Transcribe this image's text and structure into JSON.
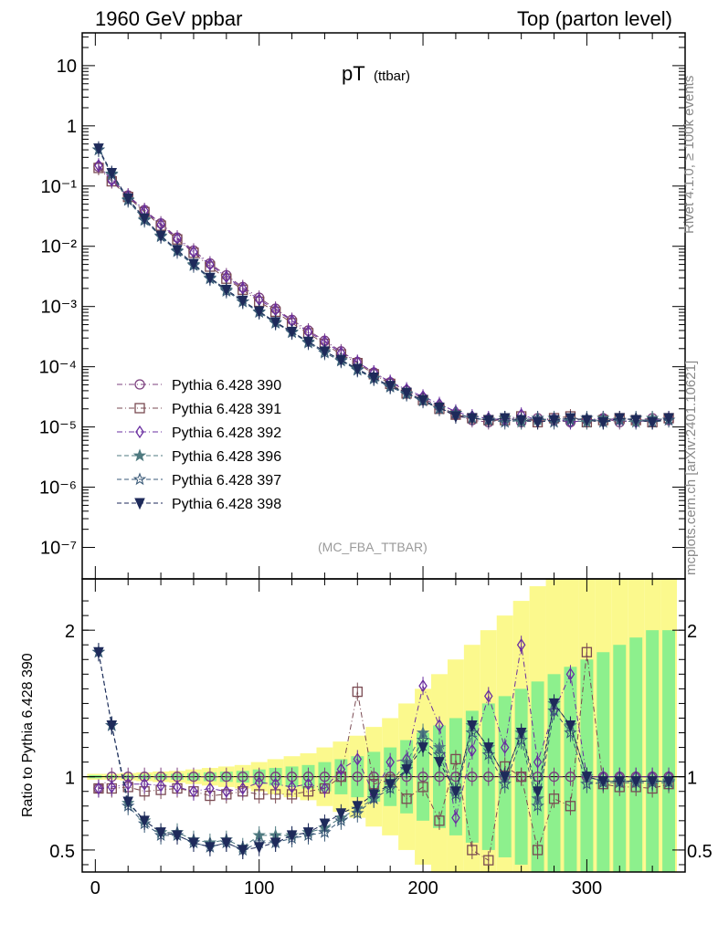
{
  "header": {
    "left": "1960 GeV ppbar",
    "right": "Top (parton level)"
  },
  "side_labels": {
    "top": "Rivet 4.1.0, ≥ 100k events",
    "bottom": "mcplots.cern.ch [arXiv:2401.10621]"
  },
  "plot_title": {
    "main": "pT",
    "sub": "(ttbar)"
  },
  "analysis_label": "(MC_FBA_TTBAR)",
  "ratio_ylabel": "Ratio to Pythia 6.428 390",
  "chart_data": {
    "type": "scatter",
    "title": "pT (ttbar)",
    "xlabel": "",
    "main_ylabel": "",
    "xlim": [
      -8,
      360
    ],
    "main_yscale": "log",
    "main_ylim": [
      3e-08,
      35
    ],
    "main_yticks": [
      {
        "value": 10,
        "label": "10"
      },
      {
        "value": 1,
        "label": "1"
      },
      {
        "value": 0.1,
        "label": "10⁻¹"
      },
      {
        "value": 0.01,
        "label": "10⁻²"
      },
      {
        "value": 0.001,
        "label": "10⁻³"
      },
      {
        "value": 0.0001,
        "label": "10⁻⁴"
      },
      {
        "value": 1e-05,
        "label": "10⁻⁵"
      },
      {
        "value": 1e-06,
        "label": "10⁻⁶"
      },
      {
        "value": 1e-07,
        "label": "10⁻⁷"
      }
    ],
    "ratio_ylim": [
      0.35,
      2.35
    ],
    "ratio_yticks": [
      {
        "value": 2,
        "label": "2"
      },
      {
        "value": 1,
        "label": "1"
      },
      {
        "value": 0.5,
        "label": "0.5"
      }
    ],
    "xticks": [
      0,
      100,
      200,
      300
    ],
    "legend_position": "lower-left",
    "series": [
      {
        "name": "Pythia 6.428 390",
        "color": "#7b3f7e",
        "marker": "circle-open",
        "dash": "dashdot",
        "x": [
          2,
          10,
          20,
          30,
          40,
          50,
          60,
          70,
          80,
          90,
          100,
          110,
          120,
          130,
          140,
          150,
          160,
          170,
          180,
          190,
          200,
          210,
          220,
          230,
          240,
          250,
          260,
          270,
          280,
          290,
          300,
          310,
          320,
          330,
          340,
          350
        ],
        "y": [
          0.21,
          0.13,
          0.07,
          0.04,
          0.024,
          0.014,
          0.0085,
          0.0052,
          0.0033,
          0.0021,
          0.0014,
          0.00092,
          0.0006,
          0.0004,
          0.00027,
          0.00018,
          0.00012,
          8e-05,
          5.5e-05,
          4e-05,
          3e-05,
          2.2e-05,
          1.6e-05,
          1.3e-05,
          1.2e-05,
          1.4e-05,
          1.2e-05,
          1.4e-05,
          1.3e-05,
          1.2e-05,
          1.3e-05,
          1.4e-05,
          1.2e-05,
          1.3e-05,
          1.4e-05,
          1.3e-05
        ],
        "ratio": [
          0.92,
          1,
          1,
          1,
          1,
          1,
          1,
          1,
          1,
          1,
          1,
          1,
          1,
          1,
          1,
          1,
          1,
          1,
          1,
          1,
          1,
          1,
          1,
          1,
          1,
          1,
          1,
          1,
          1,
          1,
          1,
          1,
          1,
          1,
          1,
          1
        ]
      },
      {
        "name": "Pythia 6.428 391",
        "color": "#7a4a52",
        "marker": "square-open",
        "dash": "dashdot",
        "x": [
          2,
          10,
          20,
          30,
          40,
          50,
          60,
          70,
          80,
          90,
          100,
          110,
          120,
          130,
          140,
          150,
          160,
          170,
          180,
          190,
          200,
          210,
          220,
          230,
          240,
          250,
          260,
          270,
          280,
          290,
          300,
          310,
          320,
          330,
          340,
          350
        ],
        "y": [
          0.2,
          0.12,
          0.066,
          0.037,
          0.022,
          0.013,
          0.0078,
          0.0046,
          0.0029,
          0.0019,
          0.0012,
          0.00082,
          0.00053,
          0.00036,
          0.00024,
          0.00016,
          0.000115,
          7.5e-05,
          5.2e-05,
          3.6e-05,
          2.8e-05,
          2e-05,
          1.6e-05,
          1.4e-05,
          1.3e-05,
          1.3e-05,
          1.5e-05,
          1.2e-05,
          1.4e-05,
          1.5e-05,
          1.2e-05,
          1.3e-05,
          1.4e-05,
          1.3e-05,
          1.2e-05,
          1.4e-05
        ],
        "ratio": [
          0.92,
          0.92,
          0.93,
          0.9,
          0.91,
          0.92,
          0.9,
          0.87,
          0.88,
          0.9,
          0.88,
          0.88,
          0.88,
          0.9,
          0.92,
          1.0,
          1.58,
          0.95,
          0.98,
          0.85,
          0.93,
          0.7,
          1.12,
          0.5,
          0.43,
          1.07,
          1.0,
          0.5,
          0.85,
          0.8,
          1.85,
          0.95,
          0.93,
          0.93,
          0.92,
          0.95
        ]
      },
      {
        "name": "Pythia 6.428 392",
        "color": "#6a2fa0",
        "marker": "diamond-open",
        "dash": "dashdot",
        "x": [
          2,
          10,
          20,
          30,
          40,
          50,
          60,
          70,
          80,
          90,
          100,
          110,
          120,
          130,
          140,
          150,
          160,
          170,
          180,
          190,
          200,
          210,
          220,
          230,
          240,
          250,
          260,
          270,
          280,
          290,
          300,
          310,
          320,
          330,
          340,
          350
        ],
        "y": [
          0.22,
          0.125,
          0.068,
          0.039,
          0.023,
          0.0135,
          0.008,
          0.005,
          0.0031,
          0.002,
          0.0013,
          0.00088,
          0.00058,
          0.00038,
          0.00026,
          0.00017,
          0.00012,
          8e-05,
          5.6e-05,
          4.2e-05,
          3.2e-05,
          2.4e-05,
          1.8e-05,
          1.5e-05,
          1.4e-05,
          1.3e-05,
          1.6e-05,
          1.3e-05,
          1.4e-05,
          1.2e-05,
          1.3e-05,
          1.4e-05,
          1.3e-05,
          1.2e-05,
          1.3e-05,
          1.4e-05
        ],
        "ratio": [
          0.92,
          0.93,
          0.95,
          0.95,
          0.94,
          0.93,
          0.9,
          0.92,
          0.9,
          0.92,
          0.96,
          0.95,
          0.93,
          0.95,
          0.92,
          1.05,
          1.12,
          0.88,
          1.1,
          1.12,
          1.62,
          1.35,
          0.72,
          1.18,
          1.55,
          1.2,
          1.9,
          1.1,
          1.45,
          1.7,
          1.0,
          1.0,
          1.0,
          1.0,
          1.0,
          1.0
        ]
      },
      {
        "name": "Pythia 6.428 396",
        "color": "#4f7a80",
        "marker": "star-filled",
        "dash": "dash",
        "x": [
          2,
          10,
          20,
          30,
          40,
          50,
          60,
          70,
          80,
          90,
          100,
          110,
          120,
          130,
          140,
          150,
          160,
          170,
          180,
          190,
          200,
          210,
          220,
          230,
          240,
          250,
          260,
          270,
          280,
          290,
          300,
          310,
          320,
          330,
          340,
          350
        ],
        "y": [
          0.4,
          0.16,
          0.06,
          0.028,
          0.015,
          0.0085,
          0.005,
          0.003,
          0.0019,
          0.0012,
          0.00082,
          0.00055,
          0.00038,
          0.00026,
          0.00018,
          0.00013,
          9e-05,
          6.5e-05,
          4.8e-05,
          3.6e-05,
          2.8e-05,
          2e-05,
          1.7e-05,
          1.4e-05,
          1.3e-05,
          1.4e-05,
          1.2e-05,
          1.3e-05,
          1.4e-05,
          1.3e-05,
          1.2e-05,
          1.4e-05,
          1.3e-05,
          1.2e-05,
          1.4e-05,
          1.3e-05
        ],
        "ratio": [
          1.85,
          1.35,
          0.82,
          0.7,
          0.62,
          0.62,
          0.57,
          0.55,
          0.57,
          0.52,
          0.6,
          0.6,
          0.6,
          0.62,
          0.65,
          0.72,
          0.78,
          0.85,
          0.95,
          1.1,
          1.3,
          1.2,
          0.9,
          1.35,
          1.2,
          1.0,
          1.3,
          0.85,
          1.5,
          1.35,
          1.0,
          0.97,
          0.97,
          0.97,
          0.97,
          0.97
        ]
      },
      {
        "name": "Pythia 6.428 397",
        "color": "#3a5a78",
        "marker": "star-open",
        "dash": "dash",
        "x": [
          2,
          10,
          20,
          30,
          40,
          50,
          60,
          70,
          80,
          90,
          100,
          110,
          120,
          130,
          140,
          150,
          160,
          170,
          180,
          190,
          200,
          210,
          220,
          230,
          240,
          250,
          260,
          270,
          280,
          290,
          300,
          310,
          320,
          330,
          340,
          350
        ],
        "y": [
          0.4,
          0.155,
          0.058,
          0.027,
          0.0145,
          0.0082,
          0.0048,
          0.0029,
          0.0018,
          0.0012,
          0.0008,
          0.00053,
          0.00037,
          0.00025,
          0.00017,
          0.000125,
          8.8e-05,
          6.3e-05,
          4.6e-05,
          3.5e-05,
          2.7e-05,
          2e-05,
          1.7e-05,
          1.4e-05,
          1.3e-05,
          1.2e-05,
          1.3e-05,
          1.4e-05,
          1.2e-05,
          1.3e-05,
          1.4e-05,
          1.2e-05,
          1.3e-05,
          1.4e-05,
          1.2e-05,
          1.3e-05
        ],
        "ratio": [
          1.85,
          1.35,
          0.8,
          0.68,
          0.6,
          0.6,
          0.55,
          0.52,
          0.55,
          0.5,
          0.55,
          0.55,
          0.58,
          0.6,
          0.62,
          0.7,
          0.75,
          0.85,
          0.92,
          1.05,
          1.25,
          1.15,
          0.88,
          1.3,
          1.15,
          0.95,
          1.25,
          0.8,
          1.45,
          1.3,
          0.95,
          0.96,
          0.96,
          0.96,
          0.96,
          0.96
        ]
      },
      {
        "name": "Pythia 6.428 398",
        "color": "#1e2a5a",
        "marker": "triangle-down-filled",
        "dash": "dash",
        "x": [
          2,
          10,
          20,
          30,
          40,
          50,
          60,
          70,
          80,
          90,
          100,
          110,
          120,
          130,
          140,
          150,
          160,
          170,
          180,
          190,
          200,
          210,
          220,
          230,
          240,
          250,
          260,
          270,
          280,
          290,
          300,
          310,
          320,
          330,
          340,
          350
        ],
        "y": [
          0.42,
          0.165,
          0.062,
          0.029,
          0.015,
          0.0087,
          0.0051,
          0.003,
          0.0019,
          0.00125,
          0.00083,
          0.00055,
          0.00038,
          0.00026,
          0.00018,
          0.00013,
          9.2e-05,
          6.6e-05,
          4.8e-05,
          3.7e-05,
          2.8e-05,
          2.1e-05,
          1.5e-05,
          1.4e-05,
          1.3e-05,
          1.4e-05,
          1.3e-05,
          1.2e-05,
          1.3e-05,
          1.4e-05,
          1.3e-05,
          1.2e-05,
          1.4e-05,
          1.3e-05,
          1.2e-05,
          1.4e-05
        ],
        "ratio": [
          1.85,
          1.35,
          0.83,
          0.7,
          0.62,
          0.6,
          0.55,
          0.52,
          0.55,
          0.5,
          0.52,
          0.55,
          0.6,
          0.62,
          0.68,
          0.75,
          0.8,
          0.88,
          0.95,
          1.05,
          1.2,
          1.1,
          0.9,
          1.35,
          1.2,
          1.0,
          1.3,
          0.9,
          1.5,
          1.35,
          1.0,
          0.97,
          0.97,
          0.97,
          0.97,
          0.97
        ]
      }
    ],
    "uncertainty_bands": {
      "x": [
        0,
        10,
        20,
        30,
        40,
        50,
        60,
        70,
        80,
        90,
        100,
        110,
        120,
        130,
        140,
        150,
        160,
        170,
        180,
        190,
        200,
        210,
        220,
        230,
        240,
        250,
        260,
        270,
        280,
        290,
        300,
        310,
        320,
        330,
        340,
        350
      ],
      "inner_half_width": [
        0.01,
        0.01,
        0.012,
        0.015,
        0.018,
        0.02,
        0.025,
        0.03,
        0.035,
        0.04,
        0.05,
        0.06,
        0.07,
        0.08,
        0.1,
        0.12,
        0.14,
        0.17,
        0.2,
        0.25,
        0.3,
        0.35,
        0.4,
        0.45,
        0.5,
        0.55,
        0.6,
        0.65,
        0.7,
        0.75,
        0.8,
        0.85,
        0.9,
        0.95,
        1.0,
        1.0
      ],
      "outer_half_width": [
        0.02,
        0.02,
        0.025,
        0.03,
        0.036,
        0.04,
        0.05,
        0.06,
        0.07,
        0.08,
        0.1,
        0.12,
        0.14,
        0.16,
        0.2,
        0.24,
        0.28,
        0.34,
        0.4,
        0.5,
        0.6,
        0.7,
        0.8,
        0.9,
        1.0,
        1.1,
        1.2,
        1.3,
        1.4,
        1.5,
        1.6,
        1.7,
        1.8,
        1.9,
        2.0,
        2.0
      ],
      "inner_color": "#8df08d",
      "outer_color": "#fbf98d"
    }
  }
}
